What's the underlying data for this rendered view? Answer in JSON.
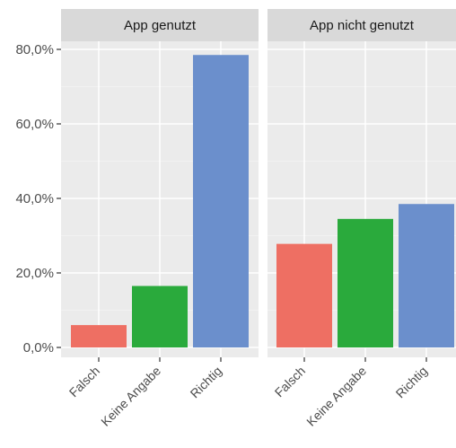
{
  "chart_data": {
    "type": "bar",
    "categories": [
      "Falsch",
      "Keine Angabe",
      "Richtig"
    ],
    "panels": [
      {
        "title": "App genutzt",
        "values": [
          6.0,
          16.5,
          78.5
        ]
      },
      {
        "title": "App nicht genutzt",
        "values": [
          27.8,
          34.5,
          38.5
        ]
      }
    ],
    "ylim": [
      0,
      81
    ],
    "yticks": [
      0,
      20,
      40,
      60,
      80
    ],
    "ytick_labels": [
      "0,0%",
      "20,0%",
      "40,0%",
      "60,0%",
      "80,0%"
    ],
    "colors": [
      "#EE6F63",
      "#2AAA3C",
      "#6B8FCC"
    ],
    "panel_background": "#EBEBEB",
    "strip_background": "#D9D9D9",
    "grid": true
  }
}
